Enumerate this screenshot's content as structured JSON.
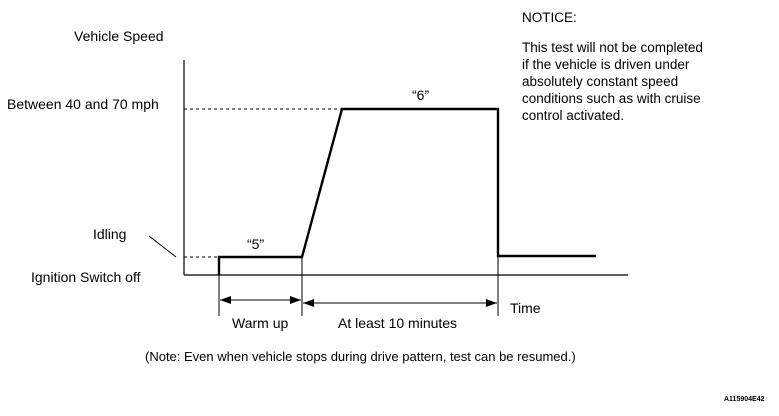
{
  "diagram": {
    "y_axis_label": "Vehicle Speed",
    "speed_high_label": "Between 40 and 70 mph",
    "idling_label": "Idling",
    "ignition_off_label": "Ignition Switch off",
    "step_5_label": "“5”",
    "step_6_label": "“6”",
    "warm_up_label": "Warm up",
    "at_least_label": "At least 10 minutes",
    "time_label": "Time"
  },
  "notice": {
    "title": "NOTICE:",
    "lines": [
      "This test will not be completed",
      "if the vehicle is driven under",
      "absolutely constant speed",
      "conditions such as with cruise",
      "control activated."
    ]
  },
  "note": "(Note: Even when vehicle stops during drive pattern, test can be resumed.)",
  "figure_code": "A115904E42",
  "colors": {
    "line": "#000000",
    "background": "#ffffff"
  }
}
